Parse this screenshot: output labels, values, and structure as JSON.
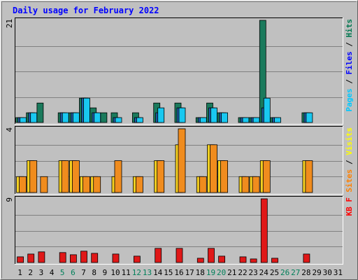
{
  "chart_data": [
    {
      "type": "bar",
      "panel": "hits-files-pages",
      "title": "Daily usage for February 2022",
      "ylim": [
        0,
        21
      ],
      "y_max_label": "21",
      "grid": true,
      "legend": [
        {
          "name": "Pages",
          "color": "#00c8ff"
        },
        {
          "name": "Files",
          "color": "#0000ff"
        },
        {
          "name": "Hits",
          "color": "#007850"
        }
      ],
      "legend_separator": " / ",
      "categories": [
        "1",
        "2",
        "3",
        "4",
        "5",
        "6",
        "7",
        "8",
        "9",
        "10",
        "11",
        "12",
        "13",
        "14",
        "15",
        "16",
        "17",
        "18",
        "19",
        "20",
        "21",
        "22",
        "23",
        "24",
        "25",
        "26",
        "27",
        "28",
        "29",
        "30",
        "31"
      ],
      "series": [
        {
          "name": "Hits",
          "color": "#1a7a5c",
          "values": [
            1,
            2,
            4,
            0,
            2,
            2,
            5,
            3,
            2,
            2,
            0,
            2,
            0,
            4,
            0,
            4,
            0,
            1,
            4,
            2,
            0,
            1,
            1,
            21,
            1,
            0,
            0,
            2,
            0,
            0,
            0
          ]
        },
        {
          "name": "Files",
          "color": "#1e5ea8",
          "values": [
            1,
            2,
            0,
            0,
            2,
            2,
            5,
            2,
            0,
            1,
            0,
            1,
            0,
            2,
            0,
            3,
            0,
            1,
            3,
            2,
            0,
            1,
            1,
            3,
            1,
            0,
            0,
            2,
            0,
            0,
            0
          ]
        },
        {
          "name": "Pages",
          "color": "#19c8f0",
          "values": [
            1,
            2,
            0,
            0,
            2,
            2,
            5,
            2,
            0,
            1,
            0,
            1,
            0,
            3,
            0,
            3,
            0,
            1,
            3,
            2,
            0,
            1,
            1,
            5,
            1,
            0,
            0,
            2,
            0,
            0,
            0
          ]
        }
      ]
    },
    {
      "type": "bar",
      "panel": "visits-sites",
      "ylim": [
        0,
        4
      ],
      "y_max_label": "4",
      "grid": true,
      "legend": [
        {
          "name": "Sites",
          "color": "#ff8000"
        },
        {
          "name": "Visits",
          "color": "#ffff00"
        }
      ],
      "legend_separator": " / ",
      "categories": [
        "1",
        "2",
        "3",
        "4",
        "5",
        "6",
        "7",
        "8",
        "9",
        "10",
        "11",
        "12",
        "13",
        "14",
        "15",
        "16",
        "17",
        "18",
        "19",
        "20",
        "21",
        "22",
        "23",
        "24",
        "25",
        "26",
        "27",
        "28",
        "29",
        "30",
        "31"
      ],
      "series": [
        {
          "name": "Visits",
          "color": "#f5d020",
          "values": [
            1,
            2,
            0,
            0,
            2,
            2,
            1,
            1,
            0,
            1,
            0,
            1,
            0,
            2,
            0,
            3,
            0,
            1,
            3,
            2,
            0,
            1,
            1,
            2,
            0,
            0,
            0,
            2,
            0,
            0,
            0
          ]
        },
        {
          "name": "Sites",
          "color": "#f08c1e",
          "values": [
            1,
            2,
            1,
            0,
            2,
            2,
            1,
            1,
            0,
            2,
            0,
            1,
            0,
            2,
            0,
            4,
            0,
            1,
            3,
            2,
            0,
            1,
            1,
            2,
            0,
            0,
            0,
            2,
            0,
            0,
            0
          ]
        }
      ]
    },
    {
      "type": "bar",
      "panel": "kbytes",
      "ylim": [
        0,
        9
      ],
      "y_max_label": "9",
      "grid": true,
      "legend": [
        {
          "name": "KB F",
          "color": "#ff0000"
        }
      ],
      "legend_separator": "",
      "categories": [
        "1",
        "2",
        "3",
        "4",
        "5",
        "6",
        "7",
        "8",
        "9",
        "10",
        "11",
        "12",
        "13",
        "14",
        "15",
        "16",
        "17",
        "18",
        "19",
        "20",
        "21",
        "22",
        "23",
        "24",
        "25",
        "26",
        "27",
        "28",
        "29",
        "30",
        "31"
      ],
      "series": [
        {
          "name": "KB F",
          "color": "#e01818",
          "values": [
            0.8,
            1.2,
            1.5,
            0,
            1.4,
            1.1,
            1.6,
            1.3,
            0,
            1.2,
            0,
            0.9,
            0,
            2.0,
            0,
            2.0,
            0,
            0.6,
            2.0,
            0.9,
            0,
            0.8,
            0.5,
            9.0,
            0.6,
            0,
            0,
            1.2,
            0,
            0,
            0
          ]
        }
      ]
    }
  ],
  "x_labels": {
    "days": [
      "1",
      "2",
      "3",
      "4",
      "5",
      "6",
      "7",
      "8",
      "9",
      "10",
      "11",
      "12",
      "13",
      "14",
      "15",
      "16",
      "17",
      "18",
      "19",
      "20",
      "21",
      "22",
      "23",
      "24",
      "25",
      "26",
      "27",
      "28",
      "29",
      "30",
      "31"
    ],
    "weekend_days": [
      "5",
      "6",
      "12",
      "13",
      "19",
      "20",
      "26",
      "27"
    ],
    "weekday_color": "#000000",
    "weekend_color": "#00805a"
  },
  "colors": {
    "background": "#c0c0c0",
    "title": "#0000ff",
    "border": "#000000",
    "gridline": "#808080"
  }
}
